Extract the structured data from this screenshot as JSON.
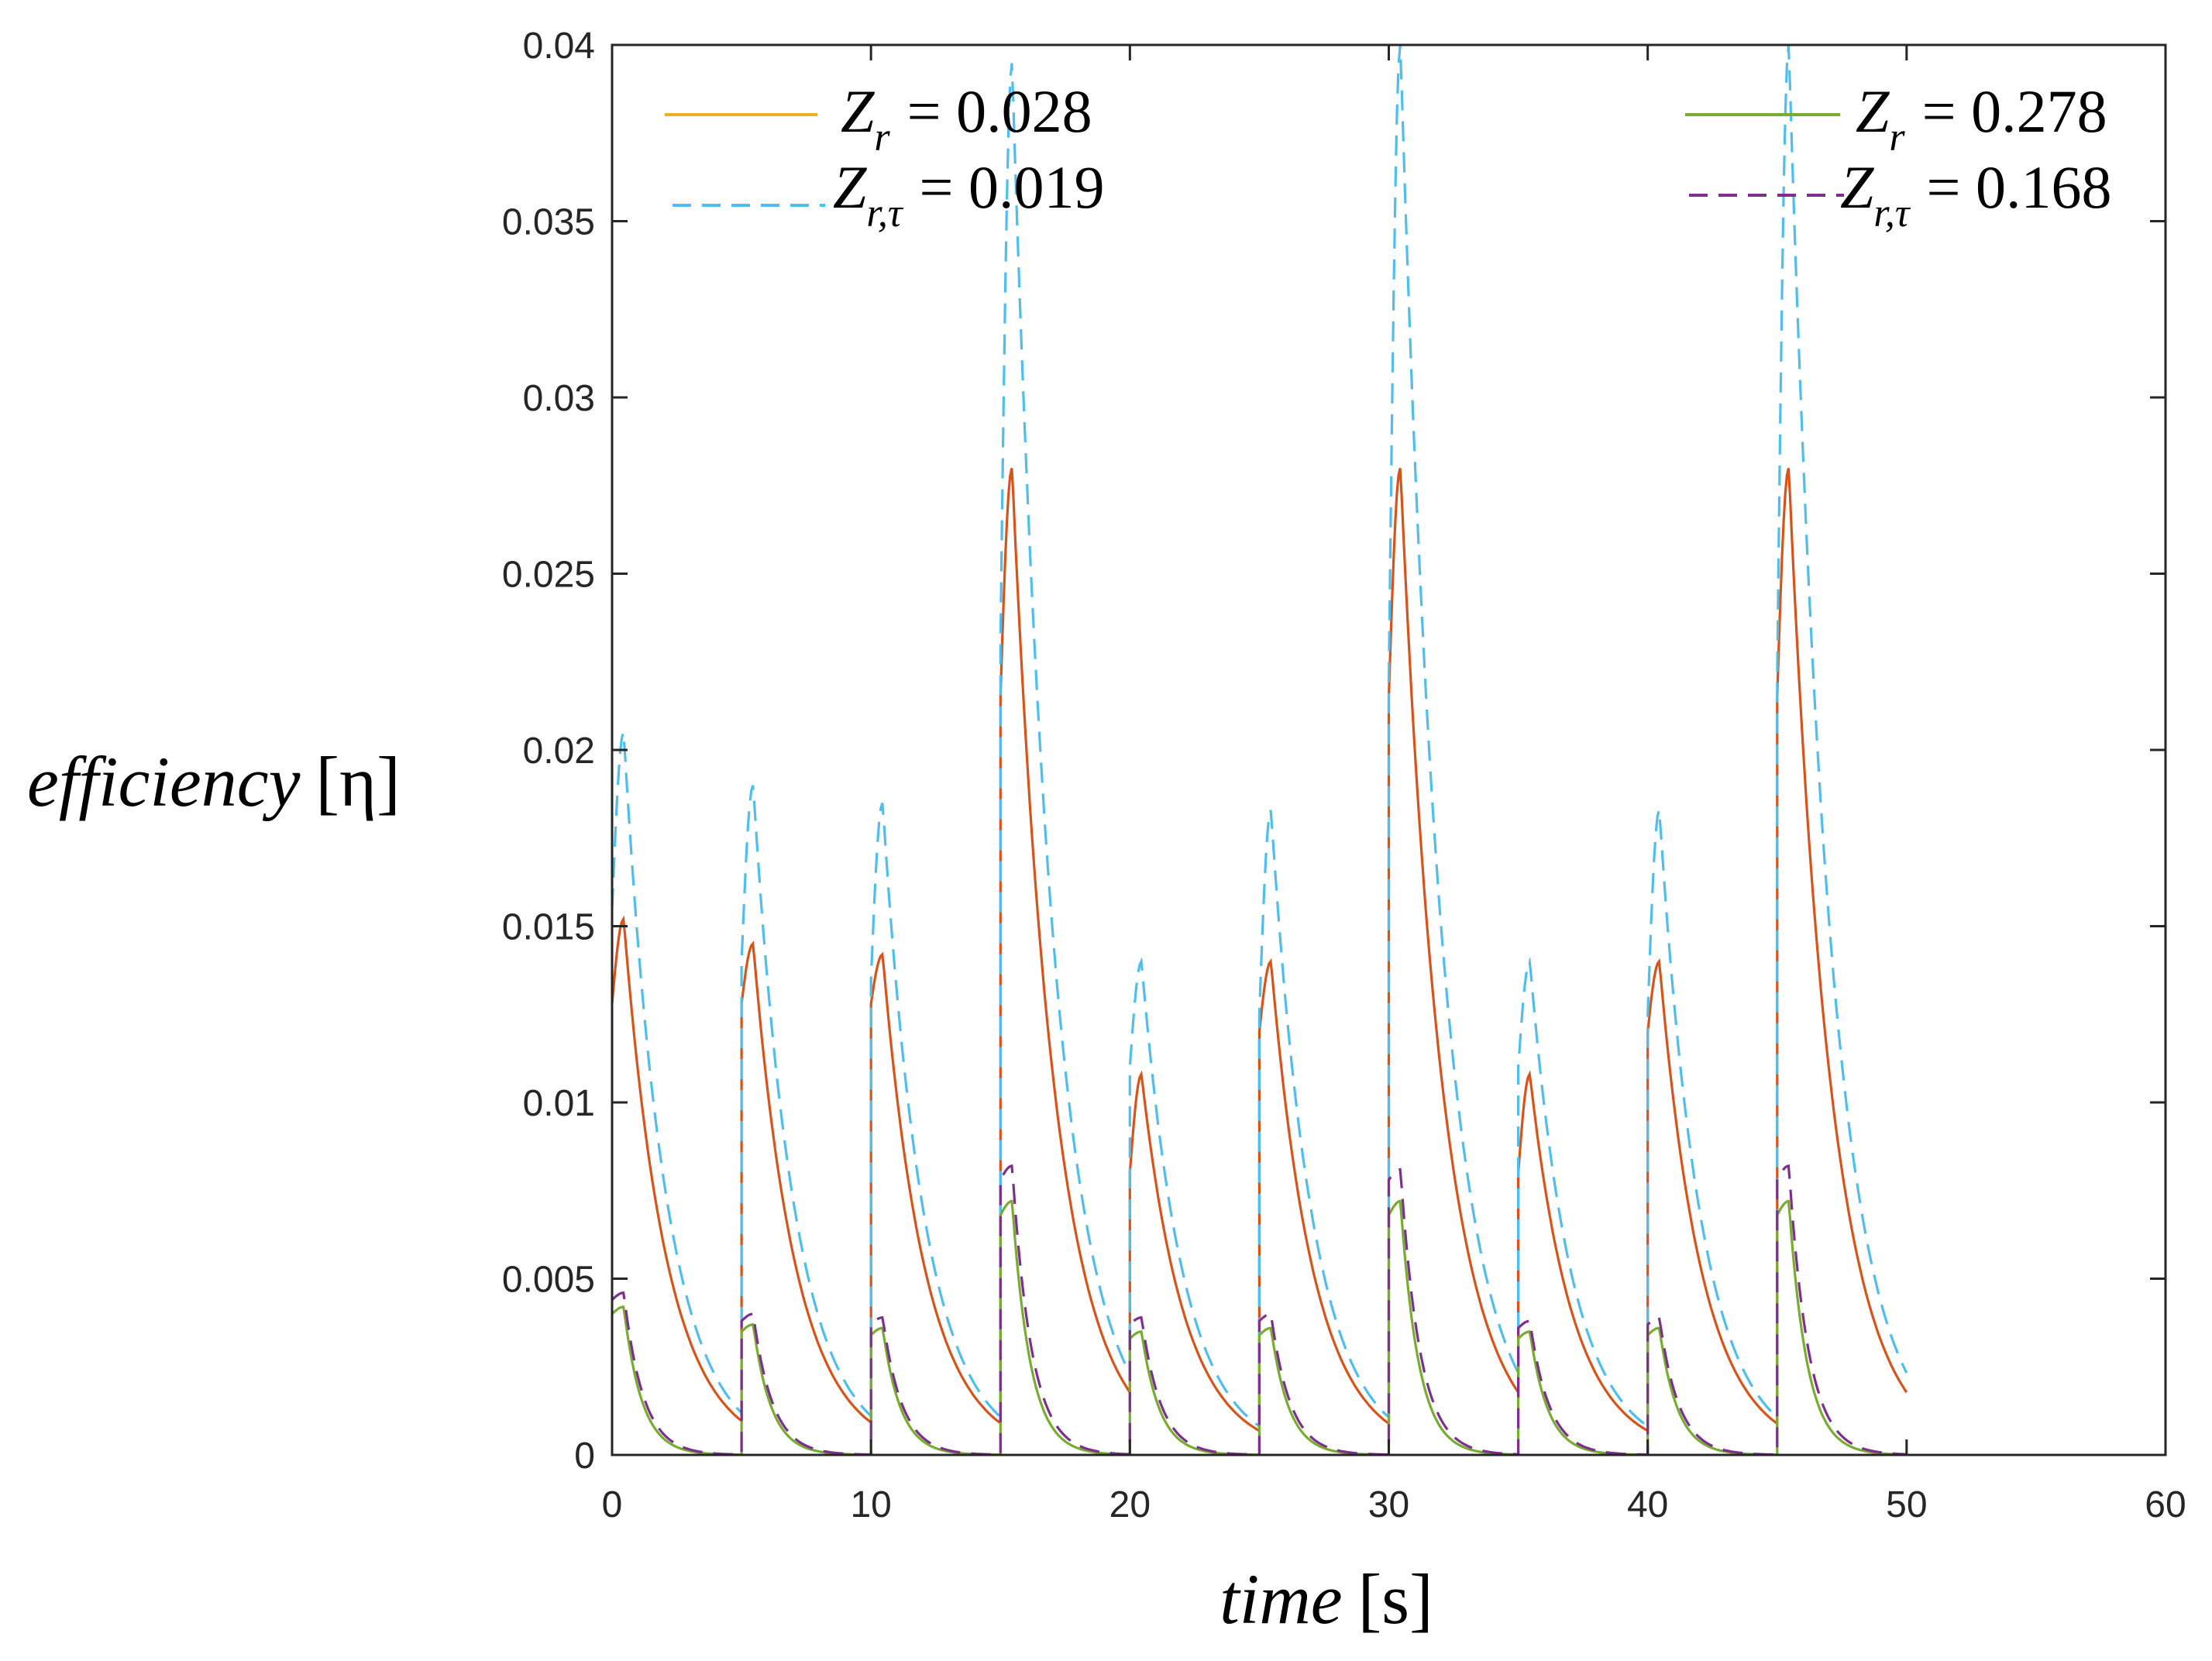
{
  "chart_data": {
    "type": "line",
    "xlabel": "time [s]",
    "xlabel_var": "time",
    "xlabel_unit": "[s]",
    "ylabel": "efficiency [η]",
    "ylabel_var": "efficiency",
    "ylabel_unit": "[η]",
    "xlim": [
      0,
      60
    ],
    "ylim": [
      0,
      0.04
    ],
    "xticks": [
      "0",
      "10",
      "20",
      "30",
      "40",
      "50",
      "60"
    ],
    "yticks": [
      "0",
      "0.005",
      "0.01",
      "0.015",
      "0.02",
      "0.025",
      "0.03",
      "0.035",
      "0.04"
    ],
    "period_s": 5,
    "x_end": 50,
    "series": [
      {
        "name": "Z_r = 0.028",
        "style": "solid",
        "color": "#D95319",
        "legend_color": "#EDB120",
        "peaks": [
          0.0152,
          0.0145,
          0.0142,
          0.028,
          0.0108,
          0.014,
          0.028,
          0.0108,
          0.014,
          0.028
        ],
        "starts": [
          0.0128,
          0.0128,
          0.0128,
          0.0215,
          0.008,
          0.012,
          0.0215,
          0.008,
          0.012,
          0.0215
        ],
        "decay_tau": 1.65
      },
      {
        "name": "Z_r,τ = 0.019",
        "style": "dashed",
        "color": "#4DBEEE",
        "legend_color": "#4DBEEE",
        "peaks": [
          0.0205,
          0.019,
          0.0185,
          0.0395,
          0.014,
          0.0183,
          0.04,
          0.014,
          0.0183,
          0.04
        ],
        "starts": [
          0.0155,
          0.014,
          0.0135,
          0.023,
          0.011,
          0.0125,
          0.022,
          0.011,
          0.0125,
          0.022
        ],
        "decay_tau": 1.6
      },
      {
        "name": "Z_r = 0.278",
        "style": "solid",
        "color": "#77AC30",
        "legend_color": "#77AC30",
        "peaks": [
          0.0042,
          0.0037,
          0.0036,
          0.0072,
          0.0035,
          0.0036,
          0.0072,
          0.0035,
          0.0036,
          0.0072
        ],
        "starts": [
          0.004,
          0.0035,
          0.0034,
          0.0068,
          0.0033,
          0.0034,
          0.0068,
          0.0033,
          0.0034,
          0.0068
        ],
        "decay_tau": 0.7
      },
      {
        "name": "Z_r,τ = 0.168",
        "style": "dashed",
        "color": "#7E2F8E",
        "legend_color": "#7E2F8E",
        "peaks": [
          0.0046,
          0.004,
          0.0039,
          0.0082,
          0.0039,
          0.004,
          0.0081,
          0.0038,
          0.0039,
          0.0082
        ],
        "starts": [
          0.0044,
          0.0038,
          0.0037,
          0.0078,
          0.0037,
          0.0038,
          0.0078,
          0.0036,
          0.0037,
          0.0078
        ],
        "decay_tau": 0.75
      }
    ]
  },
  "legend": {
    "left": [
      {
        "var": "Z",
        "sub": "r",
        "eq": "= 0.028",
        "style": "solid",
        "color": "#EDB120"
      },
      {
        "var": "Z",
        "sub": "r,τ",
        "eq": "= 0.019",
        "style": "dashed",
        "color": "#4DBEEE"
      }
    ],
    "right": [
      {
        "var": "Z",
        "sub": "r",
        "eq": "= 0.278",
        "style": "solid",
        "color": "#77AC30"
      },
      {
        "var": "Z",
        "sub": "r,τ",
        "eq": "= 0.168",
        "style": "dashed",
        "color": "#7E2F8E"
      }
    ]
  }
}
